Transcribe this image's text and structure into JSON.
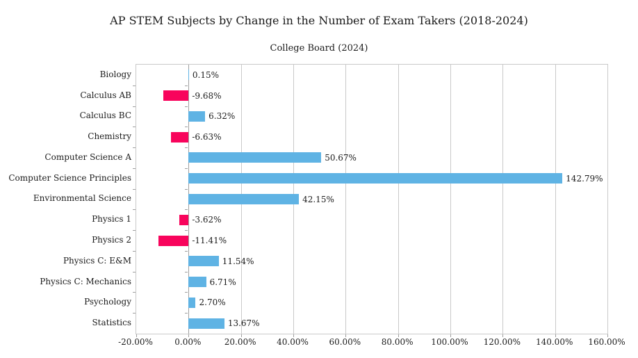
{
  "chart_data": {
    "type": "bar",
    "orientation": "horizontal",
    "title": "AP STEM Subjects by Change in the Number of Exam Takers (2018-2024)",
    "subtitle": "College Board (2024)",
    "categories": [
      "Biology",
      "Calculus AB",
      "Calculus BC",
      "Chemistry",
      "Computer Science A",
      "Computer Science Principles",
      "Environmental Science",
      "Physics 1",
      "Physics 2",
      "Physics C: E&M",
      "Physics C: Mechanics",
      "Psychology",
      "Statistics"
    ],
    "values": [
      0.15,
      -9.68,
      6.32,
      -6.63,
      50.67,
      142.79,
      42.15,
      -3.62,
      -11.41,
      11.54,
      6.71,
      2.7,
      13.67
    ],
    "value_labels": [
      "0.15%",
      "-9.68%",
      "6.32%",
      "-6.63%",
      "50.67%",
      "142.79%",
      "42.15%",
      "-3.62%",
      "-11.41%",
      "11.54%",
      "6.71%",
      "2.70%",
      "13.67%"
    ],
    "x_tick_values": [
      -20,
      0,
      20,
      40,
      60,
      80,
      100,
      120,
      140,
      160
    ],
    "x_tick_labels": [
      "-20.00%",
      "0.00%",
      "20.00%",
      "40.00%",
      "60.00%",
      "80.00%",
      "100.00%",
      "120.00%",
      "140.00%",
      "160.00%"
    ],
    "xlim": [
      -20,
      160
    ],
    "grid": true,
    "legend": "none",
    "colors": {
      "positive_bar": "#5FB3E4",
      "negative_bar": "#F8045C",
      "gridline": "#C9C9C9",
      "axis_line": "#9E9E9E",
      "text": "#1A1A1A",
      "background": "#FFFFFF"
    }
  }
}
